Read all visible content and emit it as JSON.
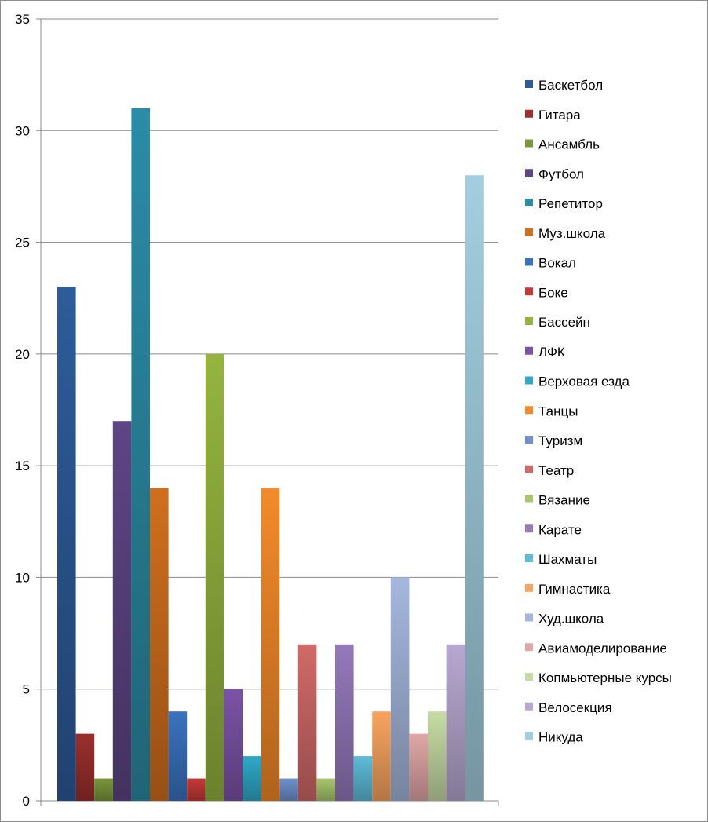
{
  "chart_data": {
    "type": "bar",
    "title": "",
    "xlabel": "",
    "ylabel": "",
    "ylim": [
      0,
      35
    ],
    "yticks": [
      0,
      5,
      10,
      15,
      20,
      25,
      30,
      35
    ],
    "grid": true,
    "legend_position": "right",
    "series": [
      {
        "name": "Баскетбол",
        "value": 23,
        "color": "#2E5C9A"
      },
      {
        "name": "Гитара",
        "value": 3,
        "color": "#9A2F2D"
      },
      {
        "name": "Ансамбль",
        "value": 1,
        "color": "#78963A"
      },
      {
        "name": "Футбол",
        "value": 17,
        "color": "#5E4585"
      },
      {
        "name": "Репетитор",
        "value": 31,
        "color": "#2B8CA5"
      },
      {
        "name": "Муз.школа",
        "value": 14,
        "color": "#D06F1E"
      },
      {
        "name": "Вокал",
        "value": 4,
        "color": "#3A72C0"
      },
      {
        "name": "Боке",
        "value": 1,
        "color": "#C43A36"
      },
      {
        "name": "Бассейн",
        "value": 20,
        "color": "#95B43F"
      },
      {
        "name": "ЛФК",
        "value": 5,
        "color": "#7B53A6"
      },
      {
        "name": "Верховая езда",
        "value": 2,
        "color": "#2FA9C7"
      },
      {
        "name": "Танцы",
        "value": 14,
        "color": "#F48A2A"
      },
      {
        "name": "Туризм",
        "value": 1,
        "color": "#6F90CC"
      },
      {
        "name": "Театр",
        "value": 7,
        "color": "#D06A68"
      },
      {
        "name": "Вязание",
        "value": 1,
        "color": "#A8C66C"
      },
      {
        "name": "Карате",
        "value": 7,
        "color": "#9479BB"
      },
      {
        "name": "Шахматы",
        "value": 2,
        "color": "#5DBCD8"
      },
      {
        "name": "Гимнастика",
        "value": 4,
        "color": "#F9A460"
      },
      {
        "name": "Худ.школа",
        "value": 10,
        "color": "#A5B7DD"
      },
      {
        "name": "Авиамоделирование",
        "value": 3,
        "color": "#E0A7A6"
      },
      {
        "name": "Копмьютерные курсы",
        "value": 4,
        "color": "#C7DCA4"
      },
      {
        "name": "Велосекция",
        "value": 7,
        "color": "#B8A8D0"
      },
      {
        "name": "Никуда",
        "value": 28,
        "color": "#A2CFE0"
      }
    ]
  }
}
